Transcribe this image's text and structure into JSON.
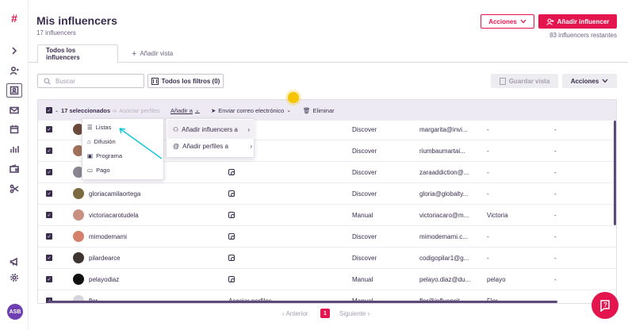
{
  "sidebar": {
    "logo": "#",
    "avatar": "ASB"
  },
  "header": {
    "title": "Mis influencers",
    "subtitle": "17 influencers",
    "acciones_label": "Acciones",
    "add_label": "Añadir influencer",
    "remaining": "83 influencers restantes"
  },
  "tabs": {
    "active": "Todos los influencers",
    "add": "Añadir vista"
  },
  "filters": {
    "search_placeholder": "Buscar",
    "filters_label": "Todos los filtros (0)",
    "save_view": "Guardar vista",
    "acciones": "Acciones"
  },
  "toolbar": {
    "selected": "17 seleccionados",
    "asociar": "Asociar perfiles",
    "anadir": "Añadir a",
    "email": "Enviar correo electrónico",
    "eliminar": "Eliminar"
  },
  "menu1": [
    "Listas",
    "Difusión",
    "Programa",
    "Pago"
  ],
  "menu2": [
    "Añadir influencers a",
    "Añadir perfiles a"
  ],
  "rows": [
    {
      "name": "",
      "source": "Discover",
      "email": "margarita@invi...",
      "c1": "-",
      "c2": "-"
    },
    {
      "name": "",
      "source": "Discover",
      "email": "riumbaumartai...",
      "c1": "-",
      "c2": "-"
    },
    {
      "name": "",
      "source": "Discover",
      "email": "zaraaddiction@...",
      "c1": "-",
      "c2": "-"
    },
    {
      "name": "gloriacamilaortega",
      "source": "Discover",
      "email": "gloria@globalty...",
      "c1": "-",
      "c2": "-"
    },
    {
      "name": "victoriacarotudela",
      "source": "Manual",
      "email": "victoriacaro@m...",
      "c1": "Victoria",
      "c2": "-"
    },
    {
      "name": "mimodemami",
      "source": "Discover",
      "email": "mimodemami.c...",
      "c1": "-",
      "c2": "-"
    },
    {
      "name": "pilardearce",
      "source": "Discover",
      "email": "codigopilar1@g...",
      "c1": "-",
      "c2": "-"
    },
    {
      "name": "pelayodiaz",
      "source": "Manual",
      "email": "pelayo.diaz@du...",
      "c1": "pelayo",
      "c2": "-"
    },
    {
      "name": "flor",
      "assoc": "Asociar perfiles",
      "source": "Manual",
      "email": "flor@influencit...",
      "c1": "Flor",
      "c2": ""
    }
  ],
  "pager": {
    "prev": "Anterior",
    "current": "1",
    "next": "Siguiente"
  },
  "colors": {
    "accent": "#e4144f",
    "text": "#3a2d4d",
    "toolbar_bg": "#edeaf3"
  }
}
